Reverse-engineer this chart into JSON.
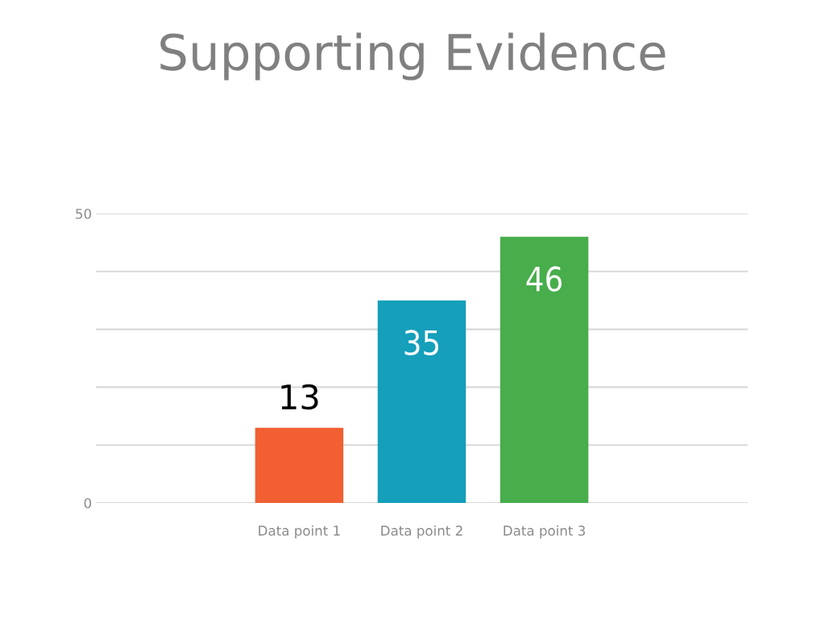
{
  "chart_data": {
    "type": "bar",
    "title": "Supporting Evidence",
    "categories": [
      "Data point 1",
      "Data point 2",
      "Data point 3"
    ],
    "values": [
      13,
      35,
      46
    ],
    "colors": [
      "#f15f33",
      "#159fbb",
      "#48ad4b"
    ],
    "ylim": [
      0,
      50
    ],
    "yticks": [
      0,
      {
        "value": 10,
        "label": null
      },
      {
        "value": 20,
        "label": null
      },
      {
        "value": 30,
        "label": null
      },
      {
        "value": 40,
        "label": null
      },
      50
    ],
    "grid": "y",
    "data_labels": true
  }
}
